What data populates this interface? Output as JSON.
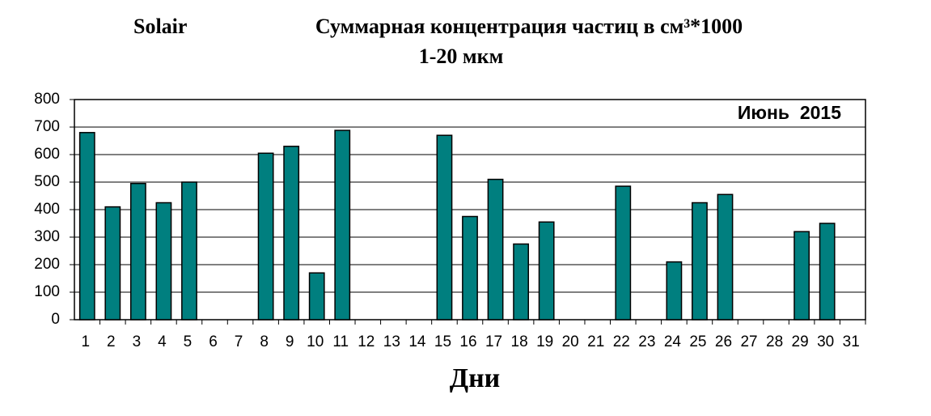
{
  "chart_data": {
    "type": "bar",
    "title": "Суммарная концентрация частиц в см³*1000",
    "subtitle": "1-20 мкм",
    "source_label": "Solair",
    "annotation": "Июнь  2015",
    "x_label": "Дни",
    "categories": [
      "1",
      "2",
      "3",
      "4",
      "5",
      "6",
      "7",
      "8",
      "9",
      "10",
      "11",
      "12",
      "13",
      "14",
      "15",
      "16",
      "17",
      "18",
      "19",
      "20",
      "21",
      "22",
      "23",
      "24",
      "25",
      "26",
      "27",
      "28",
      "29",
      "30",
      "31"
    ],
    "values": [
      680,
      410,
      495,
      425,
      500,
      null,
      null,
      605,
      630,
      170,
      688,
      null,
      null,
      null,
      670,
      375,
      510,
      275,
      355,
      null,
      null,
      485,
      null,
      210,
      425,
      455,
      null,
      null,
      320,
      350,
      null
    ],
    "color": "#007f7f",
    "ylim": [
      0,
      800
    ],
    "yticks": [
      0,
      100,
      200,
      300,
      400,
      500,
      600,
      700,
      800
    ],
    "grid": true
  }
}
